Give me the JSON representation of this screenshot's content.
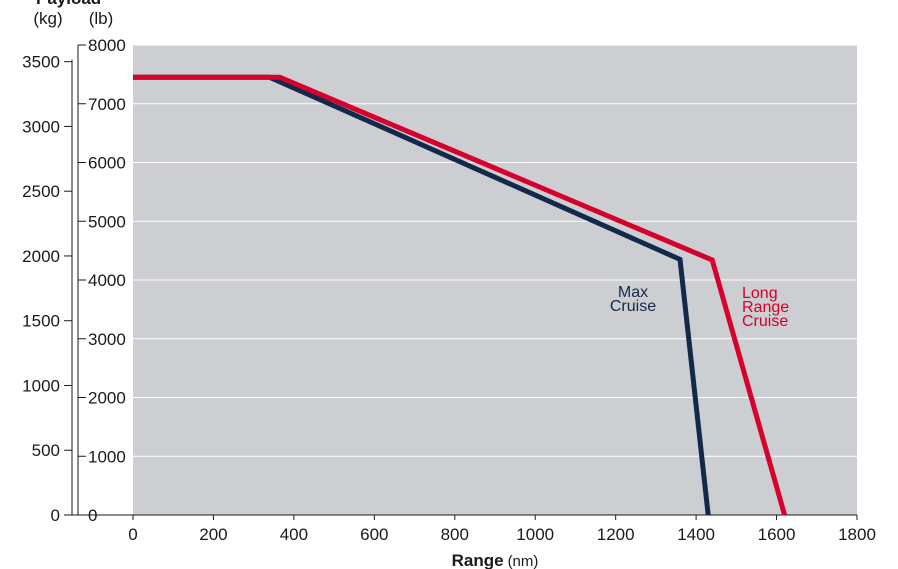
{
  "chart_data": {
    "type": "line",
    "title": "Payload",
    "xlabel": "Range",
    "xlabel_unit": "(nm)",
    "ylabel_left": "(kg)",
    "ylabel_right": "(lb)",
    "xlim": [
      0,
      1800
    ],
    "ylim_lb": [
      0,
      8000
    ],
    "ylim_kg": [
      0,
      3628.74
    ],
    "x_ticks": [
      0,
      200,
      400,
      600,
      800,
      1000,
      1200,
      1400,
      1600,
      1800
    ],
    "x_tick_labels": [
      "0",
      "200",
      "400",
      "600",
      "800",
      "1000",
      "1200",
      "1400",
      "1600",
      "1800"
    ],
    "lb_ticks": [
      0,
      1000,
      2000,
      3000,
      4000,
      5000,
      6000,
      7000,
      8000
    ],
    "lb_tick_labels": [
      "0",
      "1000",
      "2000",
      "3000",
      "4000",
      "5000",
      "6000",
      "7000",
      "8000"
    ],
    "kg_ticks": [
      0,
      500,
      1000,
      1500,
      2000,
      2500,
      3000,
      3500
    ],
    "kg_tick_labels": [
      "0",
      "500",
      "1000",
      "1500",
      "2000",
      "2500",
      "3000",
      "3500"
    ],
    "grid": true,
    "series": [
      {
        "name": "Max Cruise",
        "label_lines": [
          "Max",
          "Cruise"
        ],
        "color": "#13294b",
        "x": [
          0,
          340,
          1360,
          1430
        ],
        "y": [
          7450,
          7450,
          4350,
          0
        ]
      },
      {
        "name": "Long Range Cruise",
        "label_lines": [
          "Long",
          "Range",
          "Cruise"
        ],
        "color": "#d5002b",
        "x": [
          0,
          365,
          1440,
          1620
        ],
        "y": [
          7450,
          7450,
          4340,
          0
        ]
      }
    ],
    "colors": {
      "plot_background": "#ccced1",
      "gridline": "#ffffff",
      "axis": "#1a1a1a"
    }
  }
}
